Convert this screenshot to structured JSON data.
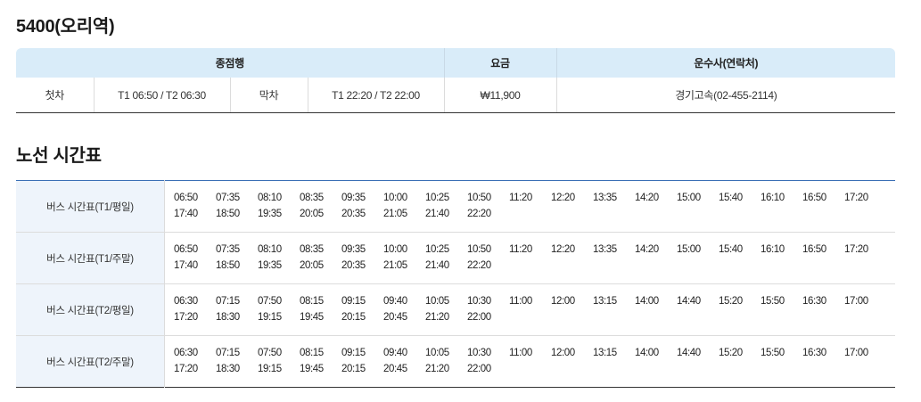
{
  "page": {
    "title": "5400(오리역)"
  },
  "info": {
    "headers": {
      "destination": "종점행",
      "fare": "요금",
      "operator": "운수사(연락처)"
    },
    "first_label": "첫차",
    "first_value": "T1 06:50 / T2 06:30",
    "last_label": "막차",
    "last_value": "T1 22:20 / T2 22:00",
    "fare_value": "₩11,900",
    "operator_value": "경기고속(02-455-2114)"
  },
  "timetable": {
    "title": "노선 시간표",
    "rows": [
      {
        "label": "버스 시간표(T1/평일)",
        "times": [
          "06:50",
          "07:35",
          "08:10",
          "08:35",
          "09:35",
          "10:00",
          "10:25",
          "10:50",
          "11:20",
          "12:20",
          "13:35",
          "14:20",
          "15:00",
          "15:40",
          "16:10",
          "16:50",
          "17:20",
          "17:40",
          "18:50",
          "19:35",
          "20:05",
          "20:35",
          "21:05",
          "21:40",
          "22:20"
        ]
      },
      {
        "label": "버스 시간표(T1/주말)",
        "times": [
          "06:50",
          "07:35",
          "08:10",
          "08:35",
          "09:35",
          "10:00",
          "10:25",
          "10:50",
          "11:20",
          "12:20",
          "13:35",
          "14:20",
          "15:00",
          "15:40",
          "16:10",
          "16:50",
          "17:20",
          "17:40",
          "18:50",
          "19:35",
          "20:05",
          "20:35",
          "21:05",
          "21:40",
          "22:20"
        ]
      },
      {
        "label": "버스 시간표(T2/평일)",
        "times": [
          "06:30",
          "07:15",
          "07:50",
          "08:15",
          "09:15",
          "09:40",
          "10:05",
          "10:30",
          "11:00",
          "12:00",
          "13:15",
          "14:00",
          "14:40",
          "15:20",
          "15:50",
          "16:30",
          "17:00",
          "17:20",
          "18:30",
          "19:15",
          "19:45",
          "20:15",
          "20:45",
          "21:20",
          "22:00"
        ]
      },
      {
        "label": "버스 시간표(T2/주말)",
        "times": [
          "06:30",
          "07:15",
          "07:50",
          "08:15",
          "09:15",
          "09:40",
          "10:05",
          "10:30",
          "11:00",
          "12:00",
          "13:15",
          "14:00",
          "14:40",
          "15:20",
          "15:50",
          "16:30",
          "17:00",
          "17:20",
          "18:30",
          "19:15",
          "19:45",
          "20:15",
          "20:45",
          "21:20",
          "22:00"
        ]
      }
    ]
  }
}
